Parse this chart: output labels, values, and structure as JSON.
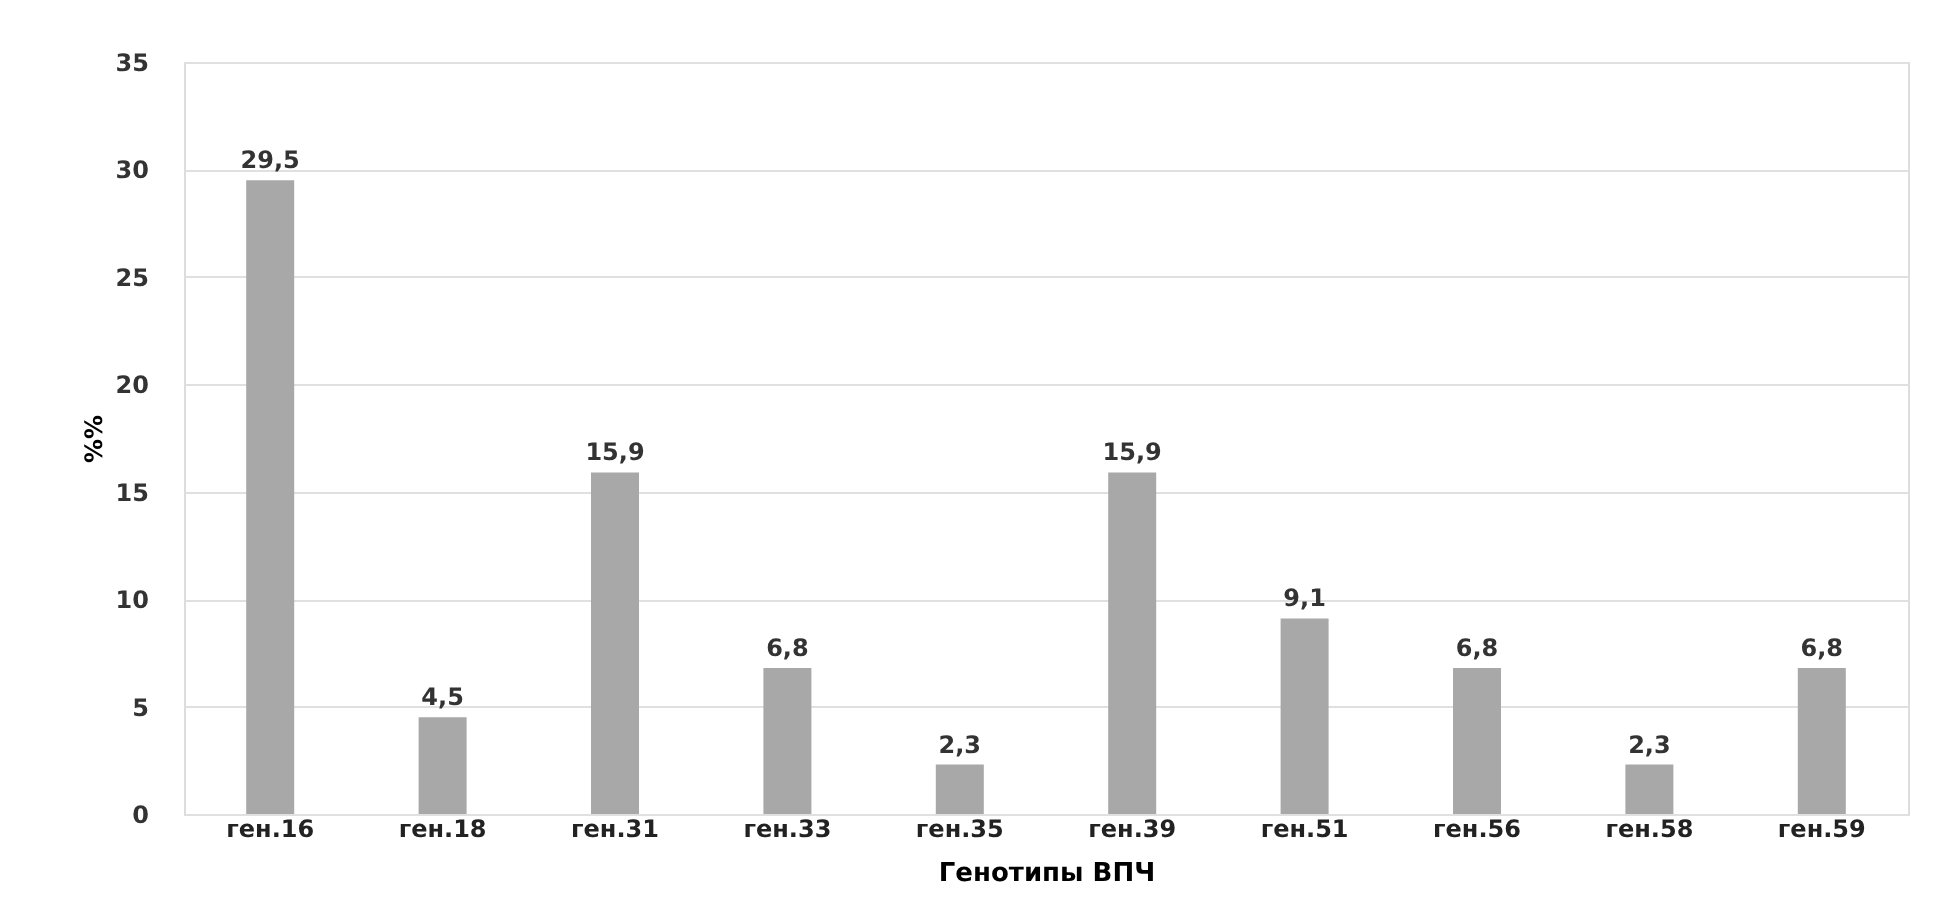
{
  "chart_data": {
    "type": "bar",
    "xlabel": "Генотипы ВПЧ",
    "ylabel": "%%",
    "categories": [
      "ген.16",
      "ген.18",
      "ген.31",
      "ген.33",
      "ген.35",
      "ген.39",
      "ген.51",
      "ген.56",
      "ген.58",
      "ген.59"
    ],
    "values": [
      29.5,
      4.5,
      15.9,
      6.8,
      2.3,
      15.9,
      9.1,
      6.8,
      2.3,
      6.8
    ],
    "value_labels": [
      "29,5",
      "4,5",
      "15,9",
      "6,8",
      "2,3",
      "15,9",
      "9,1",
      "6,8",
      "2,3",
      "6,8"
    ],
    "color": "#a8a8a8",
    "ylim": [
      0,
      35
    ],
    "yticks": [
      0,
      5,
      10,
      15,
      20,
      25,
      30,
      35
    ],
    "grid": "y"
  }
}
